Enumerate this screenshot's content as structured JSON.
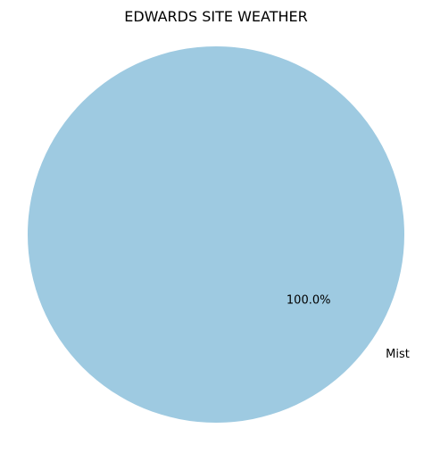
{
  "chart_data": {
    "type": "pie",
    "title": "EDWARDS SITE WEATHER",
    "labels": [
      "Mist"
    ],
    "values": [
      100.0
    ],
    "percent_labels": [
      "100.0%"
    ],
    "colors": [
      "#9ecae1"
    ]
  }
}
